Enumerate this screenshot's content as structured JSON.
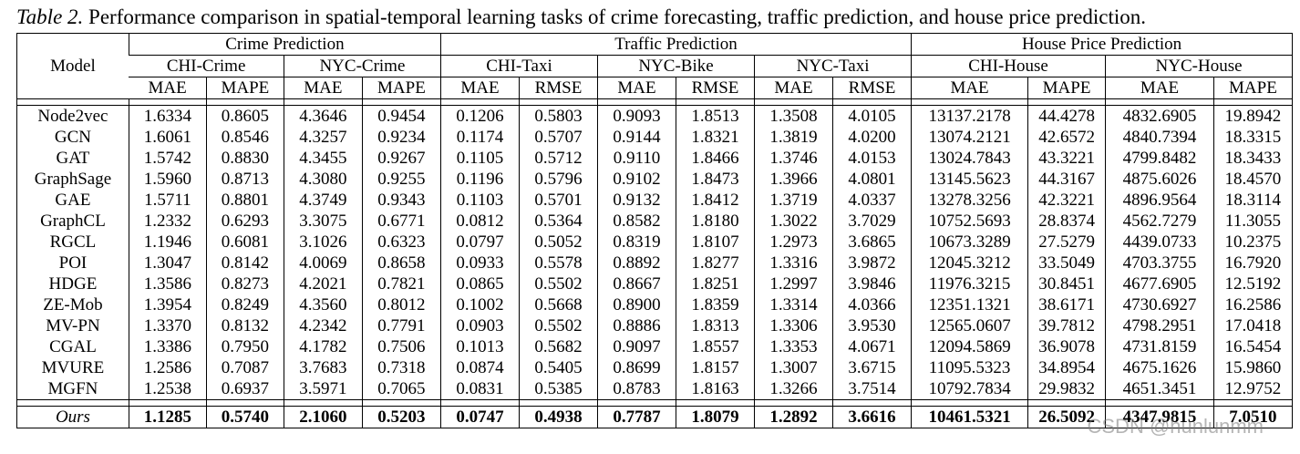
{
  "caption": {
    "label": "Table 2.",
    "text": " Performance comparison in spatial-temporal learning tasks of crime forecasting, traffic prediction, and house price prediction."
  },
  "header": {
    "model": "Model",
    "groups": [
      "Crime Prediction",
      "Traffic Prediction",
      "House Price Prediction"
    ],
    "datasets": [
      "CHI-Crime",
      "NYC-Crime",
      "CHI-Taxi",
      "NYC-Bike",
      "NYC-Taxi",
      "CHI-House",
      "NYC-House"
    ],
    "metrics": [
      "MAE",
      "MAPE",
      "MAE",
      "MAPE",
      "MAE",
      "RMSE",
      "MAE",
      "RMSE",
      "MAE",
      "RMSE",
      "MAE",
      "MAPE",
      "MAE",
      "MAPE"
    ]
  },
  "rows": [
    [
      "Node2vec",
      "1.6334",
      "0.8605",
      "4.3646",
      "0.9454",
      "0.1206",
      "0.5803",
      "0.9093",
      "1.8513",
      "1.3508",
      "4.0105",
      "13137.2178",
      "44.4278",
      "4832.6905",
      "19.8942"
    ],
    [
      "GCN",
      "1.6061",
      "0.8546",
      "4.3257",
      "0.9234",
      "0.1174",
      "0.5707",
      "0.9144",
      "1.8321",
      "1.3819",
      "4.0200",
      "13074.2121",
      "42.6572",
      "4840.7394",
      "18.3315"
    ],
    [
      "GAT",
      "1.5742",
      "0.8830",
      "4.3455",
      "0.9267",
      "0.1105",
      "0.5712",
      "0.9110",
      "1.8466",
      "1.3746",
      "4.0153",
      "13024.7843",
      "43.3221",
      "4799.8482",
      "18.3433"
    ],
    [
      "GraphSage",
      "1.5960",
      "0.8713",
      "4.3080",
      "0.9255",
      "0.1196",
      "0.5796",
      "0.9102",
      "1.8473",
      "1.3966",
      "4.0801",
      "13145.5623",
      "44.3167",
      "4875.6026",
      "18.4570"
    ],
    [
      "GAE",
      "1.5711",
      "0.8801",
      "4.3749",
      "0.9343",
      "0.1103",
      "0.5701",
      "0.9132",
      "1.8412",
      "1.3719",
      "4.0337",
      "13278.3256",
      "42.3221",
      "4896.9564",
      "18.3114"
    ],
    [
      "GraphCL",
      "1.2332",
      "0.6293",
      "3.3075",
      "0.6771",
      "0.0812",
      "0.5364",
      "0.8582",
      "1.8180",
      "1.3022",
      "3.7029",
      "10752.5693",
      "28.8374",
      "4562.7279",
      "11.3055"
    ],
    [
      "RGCL",
      "1.1946",
      "0.6081",
      "3.1026",
      "0.6323",
      "0.0797",
      "0.5052",
      "0.8319",
      "1.8107",
      "1.2973",
      "3.6865",
      "10673.3289",
      "27.5279",
      "4439.0733",
      "10.2375"
    ],
    [
      "POI",
      "1.3047",
      "0.8142",
      "4.0069",
      "0.8658",
      "0.0933",
      "0.5578",
      "0.8892",
      "1.8277",
      "1.3316",
      "3.9872",
      "12045.3212",
      "33.5049",
      "4703.3755",
      "16.7920"
    ],
    [
      "HDGE",
      "1.3586",
      "0.8273",
      "4.2021",
      "0.7821",
      "0.0865",
      "0.5502",
      "0.8667",
      "1.8251",
      "1.2997",
      "3.9846",
      "11976.3215",
      "30.8451",
      "4677.6905",
      "12.5192"
    ],
    [
      "ZE-Mob",
      "1.3954",
      "0.8249",
      "4.3560",
      "0.8012",
      "0.1002",
      "0.5668",
      "0.8900",
      "1.8359",
      "1.3314",
      "4.0366",
      "12351.1321",
      "38.6171",
      "4730.6927",
      "16.2586"
    ],
    [
      "MV-PN",
      "1.3370",
      "0.8132",
      "4.2342",
      "0.7791",
      "0.0903",
      "0.5502",
      "0.8886",
      "1.8313",
      "1.3306",
      "3.9530",
      "12565.0607",
      "39.7812",
      "4798.2951",
      "17.0418"
    ],
    [
      "CGAL",
      "1.3386",
      "0.7950",
      "4.1782",
      "0.7506",
      "0.1013",
      "0.5682",
      "0.9097",
      "1.8557",
      "1.3353",
      "4.0671",
      "12094.5869",
      "36.9078",
      "4731.8159",
      "16.5454"
    ],
    [
      "MVURE",
      "1.2586",
      "0.7087",
      "3.7683",
      "0.7318",
      "0.0874",
      "0.5405",
      "0.8699",
      "1.8157",
      "1.3007",
      "3.6715",
      "11095.5323",
      "34.8954",
      "4675.1626",
      "15.9860"
    ],
    [
      "MGFN",
      "1.2538",
      "0.6937",
      "3.5971",
      "0.7065",
      "0.0831",
      "0.5385",
      "0.8783",
      "1.8163",
      "1.3266",
      "3.7514",
      "10792.7834",
      "29.9832",
      "4651.3451",
      "12.9752"
    ]
  ],
  "ours": [
    "Ours",
    "1.1285",
    "0.5740",
    "2.1060",
    "0.5203",
    "0.0747",
    "0.4938",
    "0.7787",
    "1.8079",
    "1.2892",
    "3.6616",
    "10461.5321",
    "26.5092",
    "4347.9815",
    "7.0510"
  ],
  "watermark": "CSDN @hunlunmm"
}
